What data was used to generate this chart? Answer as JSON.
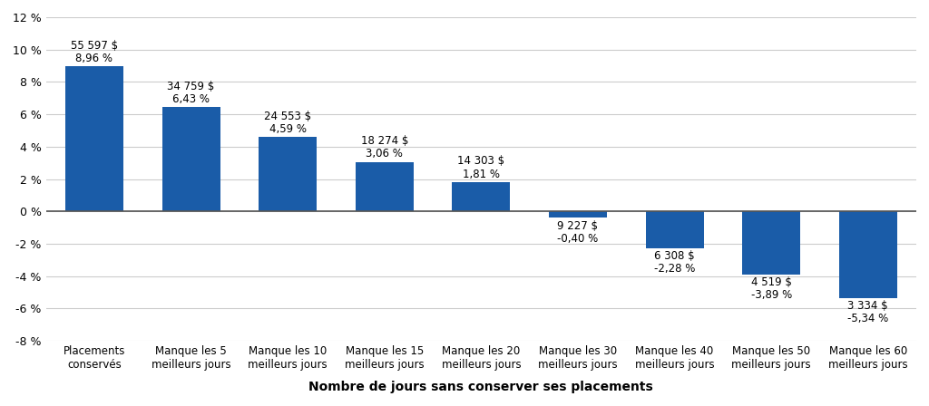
{
  "categories": [
    "Placements\nconservés",
    "Manque les 5\nmeilleurs jours",
    "Manque les 10\nmeilleurs jours",
    "Manque les 15\nmeilleurs jours",
    "Manque les 20\nmeilleurs jours",
    "Manque les 30\nmeilleurs jours",
    "Manque les 40\nmeilleurs jours",
    "Manque les 50\nmeilleurs jours",
    "Manque les 60\nmeilleurs jours"
  ],
  "values": [
    8.96,
    6.43,
    4.59,
    3.06,
    1.81,
    -0.4,
    -2.28,
    -3.89,
    -5.34
  ],
  "dollar_labels": [
    "55 597 $",
    "34 759 $",
    "24 553 $",
    "18 274 $",
    "14 303 $",
    "9 227 $",
    "6 308 $",
    "4 519 $",
    "3 334 $"
  ],
  "pct_labels": [
    "8,96 %",
    "6,43 %",
    "4,59 %",
    "3,06 %",
    "1,81 %",
    "-0,40 %",
    "-2,28 %",
    "-3,89 %",
    "-5,34 %"
  ],
  "bar_color": "#1a5ca8",
  "xlabel": "Nombre de jours sans conserver ses placements",
  "ylim": [
    -8,
    12
  ],
  "yticks": [
    -8,
    -6,
    -4,
    -2,
    0,
    2,
    4,
    6,
    8,
    10,
    12
  ],
  "background_color": "#ffffff",
  "grid_color": "#cccccc",
  "label_fontsize": 8.5,
  "axis_label_fontsize": 10
}
